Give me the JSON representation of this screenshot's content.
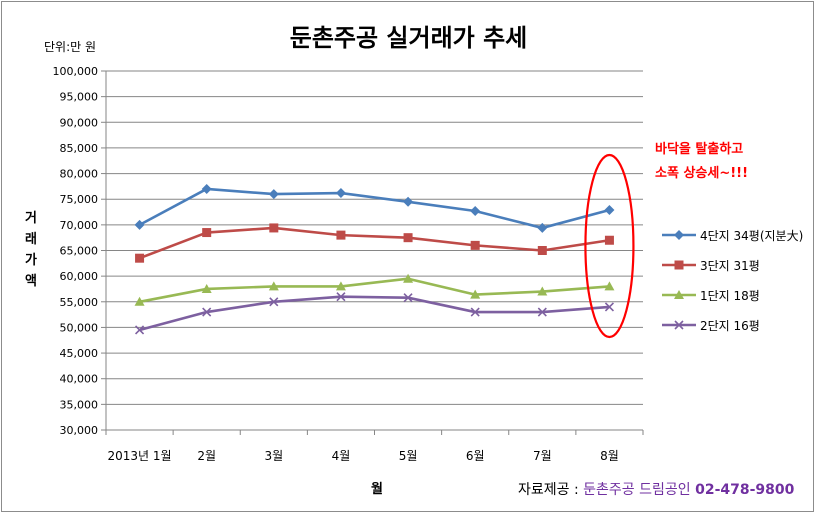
{
  "chart_data": {
    "type": "line",
    "title": "둔촌주공 실거래가 추세",
    "unit_label": "단위:만 원",
    "xlabel": "월",
    "ylabel": "거래가액",
    "categories": [
      "2013년 1월",
      "2월",
      "3월",
      "4월",
      "5월",
      "6월",
      "7월",
      "8월"
    ],
    "ylim": [
      30000,
      100000
    ],
    "ytick_step": 5000,
    "ytick_labels": [
      "30,000",
      "35,000",
      "40,000",
      "45,000",
      "50,000",
      "55,000",
      "60,000",
      "65,000",
      "70,000",
      "75,000",
      "80,000",
      "85,000",
      "90,000",
      "95,000",
      "100,000"
    ],
    "grid": true,
    "legend_position": "right",
    "series": [
      {
        "name": "4단지 34평(지분大)",
        "values": [
          70000,
          77000,
          76000,
          76200,
          74500,
          72700,
          69400,
          72900
        ],
        "color": "#4a7ebb",
        "marker": "diamond"
      },
      {
        "name": "3단지 31평",
        "values": [
          63500,
          68500,
          69400,
          68000,
          67500,
          66000,
          65000,
          67000
        ],
        "color": "#be4b48",
        "marker": "square"
      },
      {
        "name": "1단지 18평",
        "values": [
          55000,
          57500,
          58000,
          58000,
          59500,
          56400,
          57000,
          58000
        ],
        "color": "#98b954",
        "marker": "triangle"
      },
      {
        "name": "2단지 16평",
        "values": [
          49500,
          53000,
          55000,
          56000,
          55800,
          53000,
          53000,
          54000
        ],
        "color": "#7d60a0",
        "marker": "x"
      }
    ],
    "annotation": {
      "lines": [
        "바닥을 탈출하고",
        "소폭 상승세~!!!"
      ],
      "color": "#ff0000"
    }
  },
  "credit": {
    "label": "자료제공 : ",
    "company": "둔촌주공 드림공인 ",
    "phone": "02-478-9800"
  }
}
